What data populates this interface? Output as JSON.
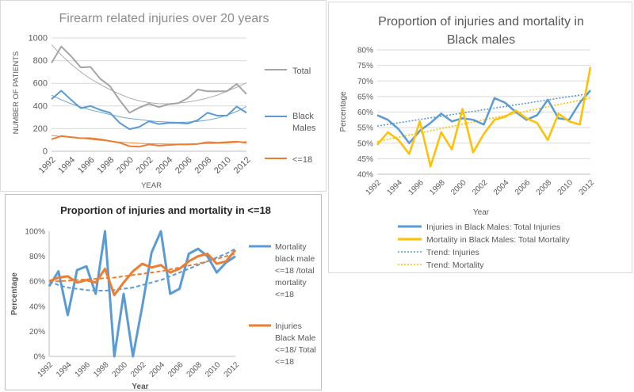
{
  "chart_data": [
    {
      "type": "line",
      "title": "Firearm related injuries over 20 years",
      "xlabel": "YEAR",
      "ylabel": "NUMBER OF PATIENTS",
      "ylim": [
        0,
        1000
      ],
      "yticks": [
        "0",
        "200",
        "400",
        "600",
        "800",
        "1000"
      ],
      "x": [
        1992,
        1993,
        1994,
        1995,
        1996,
        1997,
        1998,
        1999,
        2000,
        2001,
        2002,
        2003,
        2004,
        2005,
        2006,
        2007,
        2008,
        2009,
        2010,
        2011,
        2012
      ],
      "xticks": [
        "1992",
        "1994",
        "1996",
        "1998",
        "2000",
        "2002",
        "2004",
        "2006",
        "2008",
        "2010",
        "2012"
      ],
      "grid": true,
      "legend": "right",
      "series": [
        {
          "name": "Total",
          "color": "#a5a5a5",
          "values": [
            780,
            925,
            840,
            740,
            745,
            640,
            575,
            450,
            340,
            385,
            420,
            390,
            415,
            425,
            470,
            545,
            530,
            530,
            530,
            595,
            505
          ]
        },
        {
          "name": "Black Males",
          "color": "#5b9bd5",
          "values": [
            460,
            535,
            455,
            380,
            400,
            365,
            340,
            250,
            195,
            215,
            265,
            240,
            250,
            250,
            245,
            275,
            340,
            315,
            315,
            395,
            340
          ]
        },
        {
          "name": "<=18",
          "color": "#ed7d31",
          "values": [
            105,
            135,
            125,
            115,
            115,
            105,
            90,
            75,
            45,
            40,
            60,
            50,
            55,
            60,
            60,
            65,
            80,
            75,
            80,
            85,
            75
          ]
        }
      ],
      "trends": [
        {
          "color": "#a5a5a5",
          "values": [
            940,
            850,
            770,
            700,
            640,
            590,
            545,
            505,
            470,
            445,
            430,
            420,
            420,
            425,
            435,
            450,
            470,
            495,
            530,
            565,
            605
          ]
        },
        {
          "color": "#5b9bd5",
          "values": [
            495,
            455,
            420,
            390,
            365,
            345,
            325,
            305,
            290,
            280,
            270,
            262,
            258,
            256,
            258,
            264,
            275,
            292,
            318,
            352,
            395
          ]
        },
        {
          "color": "#ed7d31",
          "values": [
            140,
            130,
            122,
            114,
            105,
            97,
            89,
            81,
            75,
            70,
            67,
            65,
            64,
            64,
            65,
            66,
            68,
            70,
            73,
            78,
            85
          ]
        }
      ]
    },
    {
      "type": "line",
      "title": "Proportion of injuries and mortality in Black males",
      "xlabel": "Year",
      "ylabel": "Percentage",
      "ylim": [
        40,
        80
      ],
      "yticks": [
        "40%",
        "45%",
        "50%",
        "55%",
        "60%",
        "65%",
        "70%",
        "75%",
        "80%"
      ],
      "x": [
        1992,
        1993,
        1994,
        1995,
        1996,
        1997,
        1998,
        1999,
        2000,
        2001,
        2002,
        2003,
        2004,
        2005,
        2006,
        2007,
        2008,
        2009,
        2010,
        2011,
        2012
      ],
      "xticks": [
        "1992",
        "1994",
        "1996",
        "1998",
        "2000",
        "2002",
        "2004",
        "2006",
        "2008",
        "2010",
        "2012"
      ],
      "grid": true,
      "legend": "bottom",
      "series": [
        {
          "name": "Injuries in Black Males: Total Injuries",
          "color": "#5b9bd5",
          "values": [
            59,
            57.5,
            54.5,
            50,
            54,
            56.5,
            59.5,
            57,
            58,
            57.5,
            56,
            64.5,
            63,
            60,
            57.5,
            59,
            64,
            58,
            57.5,
            63,
            67
          ]
        },
        {
          "name": "Mortality in Black Males: Total Mortality",
          "color": "#ffc000",
          "values": [
            49.5,
            53.5,
            51,
            46.5,
            57,
            42.5,
            53.5,
            48,
            61,
            47,
            53,
            57.5,
            58.5,
            60.5,
            58,
            56.5,
            51,
            59.5,
            57,
            56,
            74.5
          ]
        }
      ],
      "trends": [
        {
          "name": "Trend: Injuries",
          "color": "#5b9bd5",
          "values": [
            55.5,
            66
          ]
        },
        {
          "name": "Trend: Mortality",
          "color": "#ffc000",
          "values": [
            50.5,
            64.5
          ]
        }
      ]
    },
    {
      "type": "line",
      "title": "Proportion of injuries and mortality in <=18",
      "xlabel": "Year",
      "ylabel": "Percentage",
      "ylim": [
        0,
        100
      ],
      "yticks": [
        "0%",
        "20%",
        "40%",
        "60%",
        "80%",
        "100%"
      ],
      "x": [
        1992,
        1993,
        1994,
        1995,
        1996,
        1997,
        1998,
        1999,
        2000,
        2001,
        2002,
        2003,
        2004,
        2005,
        2006,
        2007,
        2008,
        2009,
        2010,
        2011,
        2012
      ],
      "xticks": [
        "1992",
        "1994",
        "1996",
        "1998",
        "2000",
        "2002",
        "2004",
        "2006",
        "2008",
        "2010",
        "2012"
      ],
      "grid": false,
      "legend": "right",
      "series": [
        {
          "name": "Mortality black male <=18 /total mortality <=18",
          "color": "#5b9bd5",
          "values": [
            56,
            68,
            33,
            69,
            72,
            50,
            100,
            0,
            50,
            0,
            40,
            83,
            100,
            50,
            54,
            82,
            86,
            80,
            67,
            75,
            80
          ]
        },
        {
          "name": "Injuries Black Male <=18/ Total <=18",
          "color": "#ed7d31",
          "values": [
            60,
            63,
            64,
            59,
            61,
            59,
            70,
            49,
            59,
            68,
            74,
            71,
            73,
            67,
            70,
            76,
            80,
            82,
            74,
            76,
            85
          ]
        }
      ],
      "trends": [
        {
          "color": "#5b9bd5",
          "values": [
            60,
            57,
            55,
            54,
            53,
            52.5,
            52.5,
            53,
            54,
            55,
            57,
            59,
            61,
            64,
            67,
            70,
            73,
            76,
            79,
            82,
            86
          ]
        },
        {
          "color": "#ed7d31",
          "values": [
            60,
            60,
            60.5,
            61,
            61.5,
            62,
            62.5,
            63,
            64,
            65,
            66,
            67,
            68,
            69.5,
            71,
            72.5,
            74,
            76,
            78,
            80,
            82
          ]
        }
      ]
    }
  ],
  "legend_lines": {
    "p1": [
      [
        "Total"
      ],
      [
        "Black",
        "Males"
      ],
      [
        "<=18"
      ]
    ],
    "p3": [
      [
        "Mortality",
        "black male",
        "<=18 /total",
        "mortality",
        "<=18"
      ],
      [
        "Injuries",
        "Black Male",
        "<=18/ Total",
        "<=18"
      ]
    ]
  },
  "title_lines": {
    "p2": [
      "Proportion of injuries and mortality in",
      "Black males"
    ]
  }
}
